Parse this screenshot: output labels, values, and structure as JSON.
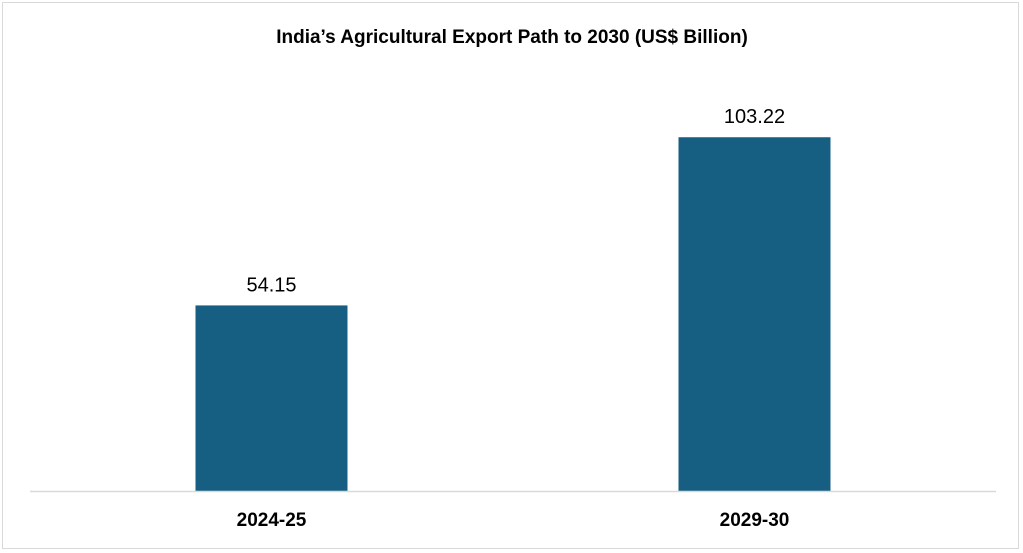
{
  "chart_data": {
    "type": "bar",
    "title": "India’s Agricultural Export Path to 2030 (US$ Billion)",
    "categories": [
      "2024-25",
      "2029-30"
    ],
    "values": [
      54.15,
      103.22
    ],
    "data_labels": [
      "54.15",
      "103.22"
    ],
    "xlabel": "",
    "ylabel": "",
    "ylim": [
      0,
      110
    ],
    "grid": false,
    "legend": "none",
    "bar_color": "#175f82",
    "axis_color": "#d9d9d9"
  }
}
